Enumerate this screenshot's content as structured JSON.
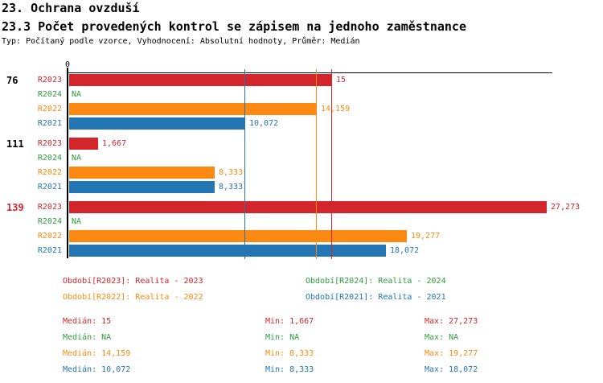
{
  "header": {
    "title": "23. Ochrana ovzduší",
    "subtitle": "23.3 Počet provedených kontrol se zápisem na jednoho zaměstnance",
    "meta": "Typ: Počítaný podle vzorce, Vyhodnocení: Absolutní hodnoty, Průměr: Medián"
  },
  "colors": {
    "R2023": "#d2262c",
    "R2024": "#2e9e3c",
    "R2022": "#fb8912",
    "R2021": "#2375b4",
    "axis": "#000000",
    "text": "#000000",
    "background": "#ffffff"
  },
  "chart_data": {
    "type": "bar",
    "orientation": "horizontal",
    "x_axis": {
      "origin_label": "0",
      "max_estimated": 27.6,
      "gridlines": "median-value-lines-only"
    },
    "series_order": [
      "R2023",
      "R2024",
      "R2022",
      "R2021"
    ],
    "groups": [
      {
        "label": "76",
        "label_color": "#000000",
        "bars": [
          {
            "series": "R2023",
            "value": 15,
            "display": "15"
          },
          {
            "series": "R2024",
            "value": null,
            "display": "NA"
          },
          {
            "series": "R2022",
            "value": 14.159,
            "display": "14,159"
          },
          {
            "series": "R2021",
            "value": 10.072,
            "display": "10,072"
          }
        ]
      },
      {
        "label": "111",
        "label_color": "#000000",
        "bars": [
          {
            "series": "R2023",
            "value": 1.667,
            "display": "1,667"
          },
          {
            "series": "R2024",
            "value": null,
            "display": "NA"
          },
          {
            "series": "R2022",
            "value": 8.333,
            "display": "8,333"
          },
          {
            "series": "R2021",
            "value": 8.333,
            "display": "8,333"
          }
        ]
      },
      {
        "label": "139",
        "label_color": "#d2262c",
        "bars": [
          {
            "series": "R2023",
            "value": 27.273,
            "display": "27,273"
          },
          {
            "series": "R2024",
            "value": null,
            "display": "NA"
          },
          {
            "series": "R2022",
            "value": 19.277,
            "display": "19,277"
          },
          {
            "series": "R2021",
            "value": 18.072,
            "display": "18,072"
          }
        ]
      }
    ],
    "median_lines": [
      {
        "series": "R2021",
        "value": 10.072
      },
      {
        "series": "R2022",
        "value": 14.159
      },
      {
        "series": "R2023",
        "value": 15
      }
    ]
  },
  "legend": {
    "items": [
      {
        "series": "R2023",
        "text": "Období[R2023]: Realita - 2023"
      },
      {
        "series": "R2024",
        "text": "Období[R2024]: Realita - 2024"
      },
      {
        "series": "R2022",
        "text": "Období[R2022]: Realita - 2022"
      },
      {
        "series": "R2021",
        "text": "Období[R2021]: Realita - 2021"
      }
    ]
  },
  "stats": {
    "rows": [
      {
        "series": "R2023",
        "median": "Medián: 15",
        "min": "Min: 1,667",
        "max": "Max: 27,273"
      },
      {
        "series": "R2024",
        "median": "Medián: NA",
        "min": "Min: NA",
        "max": "Max: NA"
      },
      {
        "series": "R2022",
        "median": "Medián: 14,159",
        "min": "Min: 8,333",
        "max": "Max: 19,277"
      },
      {
        "series": "R2021",
        "median": "Medián: 10,072",
        "min": "Min: 8,333",
        "max": "Max: 18,072"
      }
    ]
  }
}
